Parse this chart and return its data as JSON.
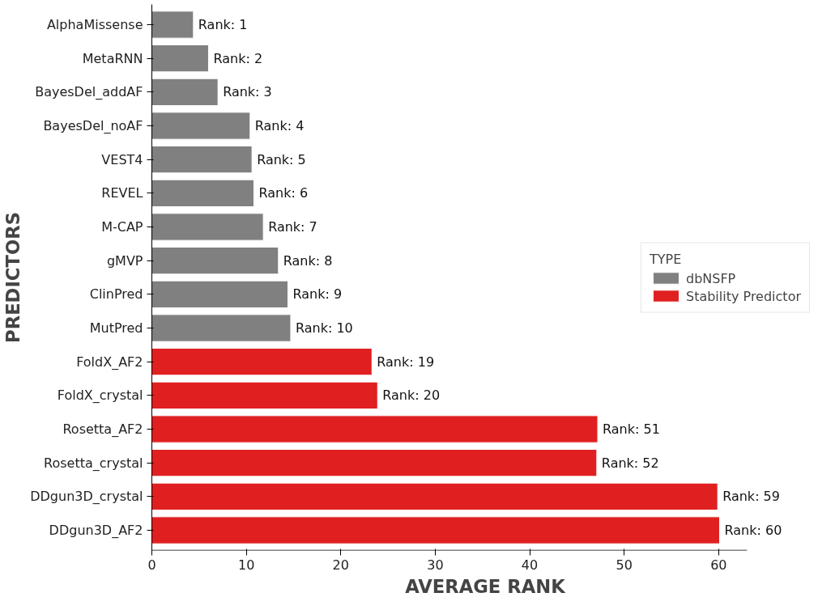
{
  "chart_data": {
    "type": "bar",
    "orientation": "horizontal",
    "xlabel": "AVERAGE RANK",
    "ylabel": "PREDICTORS",
    "legend_title": "TYPE",
    "legend": "right",
    "grid": false,
    "categories": [
      "AlphaMissense",
      "MetaRNN",
      "BayesDel_addAF",
      "BayesDel_noAF",
      "VEST4",
      "REVEL",
      "M-CAP",
      "gMVP",
      "ClinPred",
      "MutPred",
      "FoldX_AF2",
      "FoldX_crystal",
      "Rosetta_AF2",
      "Rosetta_crystal",
      "DDgun3D_crystal",
      "DDgun3D_AF2"
    ],
    "series": [
      {
        "name": "dbNSFP",
        "color": "#808080",
        "values": [
          4.4,
          6.0,
          7.0,
          10.4,
          10.6,
          10.8,
          11.8,
          13.4,
          14.4,
          14.7,
          null,
          null,
          null,
          null,
          null,
          null
        ]
      },
      {
        "name": "Stability Predictor",
        "color": "#e02020",
        "values": [
          null,
          null,
          null,
          null,
          null,
          null,
          null,
          null,
          null,
          null,
          23.3,
          23.9,
          47.2,
          47.1,
          59.9,
          60.1
        ]
      }
    ],
    "annotations": [
      {
        "text": "Rank: 1",
        "x": 4.4,
        "y": "AlphaMissense"
      },
      {
        "text": "Rank: 2",
        "x": 6.0,
        "y": "MetaRNN"
      },
      {
        "text": "Rank: 3",
        "x": 7.0,
        "y": "BayesDel_addAF"
      },
      {
        "text": "Rank: 4",
        "x": 10.4,
        "y": "BayesDel_noAF"
      },
      {
        "text": "Rank: 5",
        "x": 10.6,
        "y": "VEST4"
      },
      {
        "text": "Rank: 6",
        "x": 10.8,
        "y": "REVEL"
      },
      {
        "text": "Rank: 7",
        "x": 11.8,
        "y": "M-CAP"
      },
      {
        "text": "Rank: 8",
        "x": 13.4,
        "y": "gMVP"
      },
      {
        "text": "Rank: 9",
        "x": 14.4,
        "y": "ClinPred"
      },
      {
        "text": "Rank: 10",
        "x": 14.7,
        "y": "MutPred"
      },
      {
        "text": "Rank: 19",
        "x": 23.3,
        "y": "FoldX_AF2"
      },
      {
        "text": "Rank: 20",
        "x": 23.9,
        "y": "FoldX_crystal"
      },
      {
        "text": "Rank: 51",
        "x": 47.2,
        "y": "Rosetta_AF2"
      },
      {
        "text": "Rank: 52",
        "x": 47.1,
        "y": "Rosetta_crystal"
      },
      {
        "text": "Rank: 59",
        "x": 59.9,
        "y": "DDgun3D_crystal"
      },
      {
        "text": "Rank: 60",
        "x": 60.1,
        "y": "DDgun3D_AF2"
      }
    ],
    "xlim": [
      0,
      63
    ],
    "xticks": [
      0,
      10,
      20,
      30,
      40,
      50,
      60
    ]
  }
}
